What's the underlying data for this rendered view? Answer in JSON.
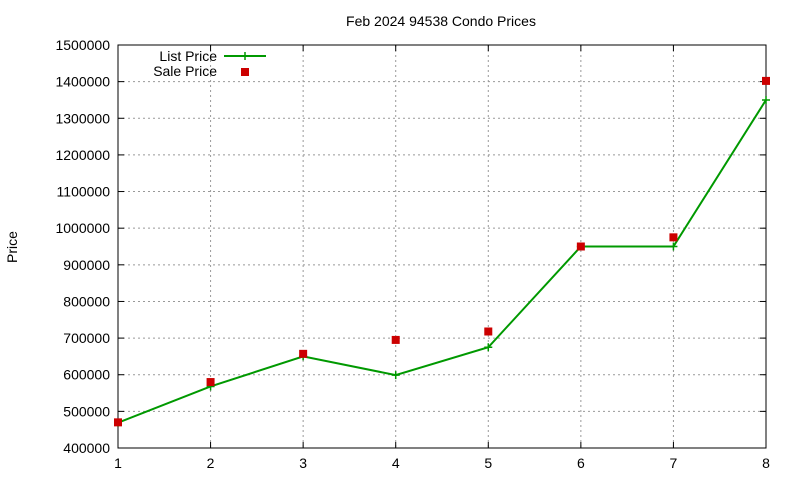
{
  "chart_data": {
    "type": "line",
    "title": "Feb 2024 94538 Condo Prices",
    "xlabel": "",
    "ylabel": "Price",
    "x": [
      1,
      2,
      3,
      4,
      5,
      6,
      7,
      8
    ],
    "xlim": [
      1,
      8
    ],
    "ylim": [
      400000,
      1500000
    ],
    "x_ticks": [
      "1",
      "2",
      "3",
      "4",
      "5",
      "6",
      "7",
      "8"
    ],
    "y_ticks": [
      "400000",
      "500000",
      "600000",
      "700000",
      "800000",
      "900000",
      "1000000",
      "1100000",
      "1200000",
      "1300000",
      "1400000",
      "1500000"
    ],
    "grid": true,
    "legend_position": "top-left",
    "series": [
      {
        "name": "List Price",
        "style": "line-with-plus-markers",
        "color": "#009900",
        "values": [
          469000,
          568000,
          650000,
          599000,
          675000,
          950000,
          950000,
          1350000
        ]
      },
      {
        "name": "Sale Price",
        "style": "square-markers",
        "color": "#cc0000",
        "values": [
          470000,
          580000,
          657000,
          695000,
          718000,
          950000,
          975000,
          1402000
        ]
      }
    ]
  }
}
